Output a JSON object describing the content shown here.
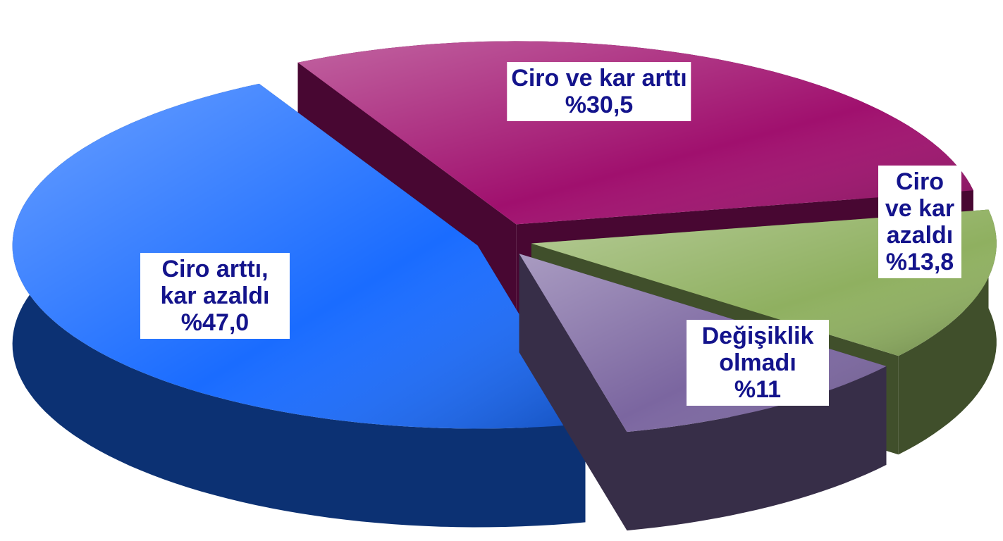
{
  "chart_data": {
    "type": "pie3d",
    "categories": [
      "Ciro ve kar arttı",
      "Ciro ve kar azaldı",
      "Değişiklik olmadı",
      "Ciro arttı, kar azaldı"
    ],
    "values": [
      30.5,
      13.8,
      11,
      47.0
    ],
    "value_labels": [
      "%30,5",
      "%13,8",
      "%11",
      "%47,0"
    ],
    "colors": [
      "#a0106e",
      "#8fb060",
      "#7b66a0",
      "#1a6cff"
    ]
  }
}
